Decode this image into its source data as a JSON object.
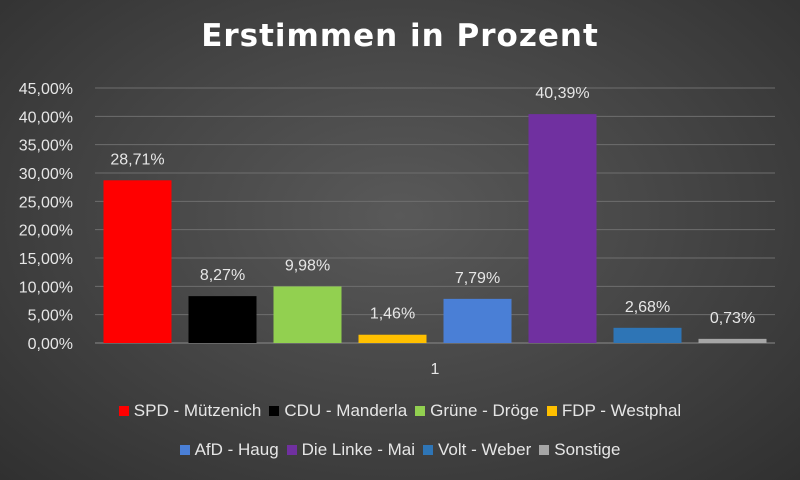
{
  "chart_data": {
    "type": "bar",
    "title": "Erstimmen in Prozent",
    "categories": [
      "1"
    ],
    "series": [
      {
        "name": "SPD - Mützenich",
        "values": [
          28.71
        ],
        "label": "28,71%",
        "color": "#ff0000"
      },
      {
        "name": "CDU - Manderla",
        "values": [
          8.27
        ],
        "label": "8,27%",
        "color": "#000000"
      },
      {
        "name": "Grüne - Dröge",
        "values": [
          9.98
        ],
        "label": "9,98%",
        "color": "#92d050"
      },
      {
        "name": "FDP - Westphal",
        "values": [
          1.46
        ],
        "label": "1,46%",
        "color": "#ffc000"
      },
      {
        "name": "AfD - Haug",
        "values": [
          7.79
        ],
        "label": "7,79%",
        "color": "#4a7fd6"
      },
      {
        "name": "Die Linke - Mai",
        "values": [
          40.39
        ],
        "label": "40,39%",
        "color": "#7030a0"
      },
      {
        "name": "Volt - Weber",
        "values": [
          2.68
        ],
        "label": "2,68%",
        "color": "#2e75b6"
      },
      {
        "name": "Sonstige",
        "values": [
          0.73
        ],
        "label": "0,73%",
        "color": "#a6a6a6"
      }
    ],
    "ylim": [
      0,
      45
    ],
    "yticks": [
      0,
      5,
      10,
      15,
      20,
      25,
      30,
      35,
      40,
      45
    ],
    "ytick_labels": [
      "0,00%",
      "5,00%",
      "10,00%",
      "15,00%",
      "20,00%",
      "25,00%",
      "30,00%",
      "35,00%",
      "40,00%",
      "45,00%"
    ],
    "xlabel": "",
    "ylabel": "",
    "grid": true,
    "legend_position": "bottom"
  }
}
